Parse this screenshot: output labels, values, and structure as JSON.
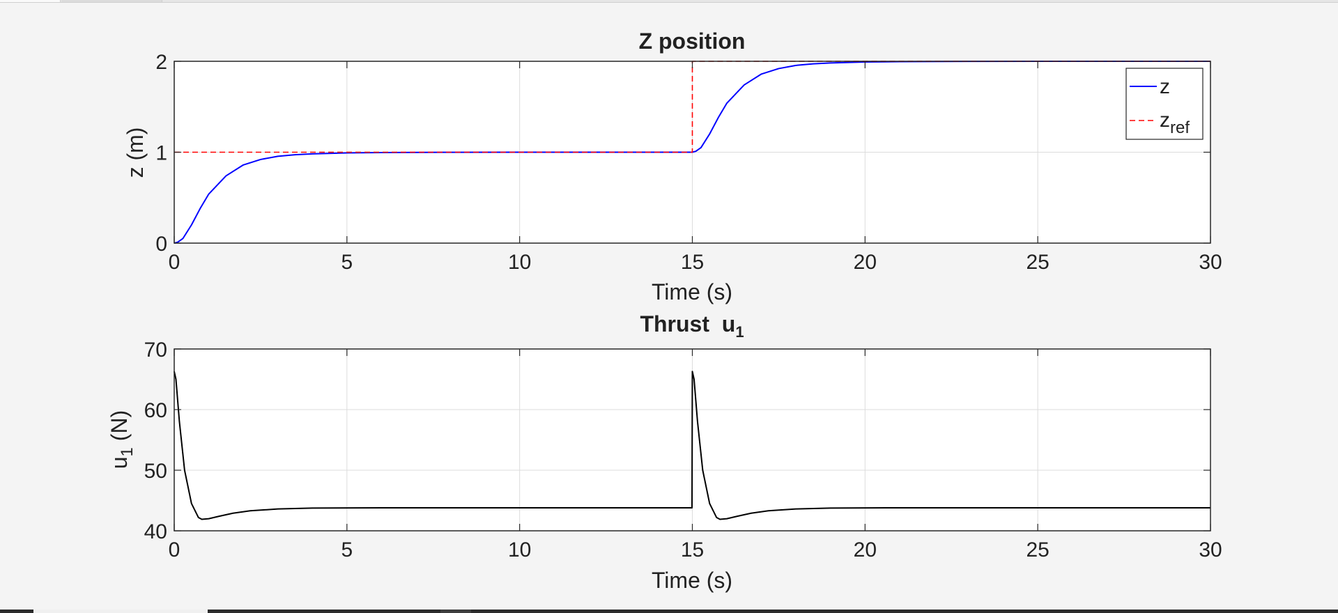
{
  "chart_data": [
    {
      "type": "line",
      "title": "Z position",
      "xlabel": "Time (s)",
      "ylabel": "z (m)",
      "xlim": [
        0,
        30
      ],
      "ylim": [
        0,
        2
      ],
      "xticks": [
        0,
        5,
        10,
        15,
        20,
        25,
        30
      ],
      "yticks": [
        0,
        1,
        2
      ],
      "grid": true,
      "legend": {
        "position": "top-right",
        "entries": [
          {
            "label": "z"
          },
          {
            "label": "z",
            "sub": "ref"
          }
        ]
      },
      "series": [
        {
          "name": "z",
          "color": "#0000ff",
          "style": "solid",
          "x": [
            0,
            0.1,
            0.25,
            0.5,
            0.75,
            1.0,
            1.5,
            2.0,
            2.5,
            3.0,
            3.5,
            4.0,
            5.0,
            6.0,
            8.0,
            10.0,
            15.0,
            15.1,
            15.25,
            15.5,
            15.75,
            16.0,
            16.5,
            17.0,
            17.5,
            18.0,
            18.5,
            19.0,
            20.0,
            21.0,
            23.0,
            25.0,
            30.0
          ],
          "y": [
            0,
            0.01,
            0.05,
            0.2,
            0.38,
            0.54,
            0.74,
            0.86,
            0.92,
            0.955,
            0.972,
            0.982,
            0.992,
            0.996,
            0.999,
            1.0,
            1.0,
            1.01,
            1.05,
            1.2,
            1.38,
            1.54,
            1.74,
            1.86,
            1.92,
            1.955,
            1.972,
            1.982,
            1.992,
            1.996,
            1.999,
            2.0,
            2.0
          ]
        },
        {
          "name": "z_ref",
          "color": "#ff0000",
          "style": "dashed",
          "x": [
            0,
            15,
            15,
            30
          ],
          "y": [
            1,
            1,
            2,
            2
          ]
        }
      ]
    },
    {
      "type": "line",
      "title": "Thrust  u",
      "title_sub": "1",
      "xlabel": "Time (s)",
      "ylabel": "u",
      "ylabel_sub": "1",
      "ylabel_unit": " (N)",
      "xlim": [
        0,
        30
      ],
      "ylim": [
        40,
        70
      ],
      "xticks": [
        0,
        5,
        10,
        15,
        20,
        25,
        30
      ],
      "yticks": [
        40,
        50,
        60,
        70
      ],
      "grid": true,
      "series": [
        {
          "name": "u1",
          "color": "#000000",
          "style": "solid",
          "x": [
            0,
            0.05,
            0.15,
            0.3,
            0.5,
            0.7,
            0.8,
            1.0,
            1.3,
            1.7,
            2.2,
            3.0,
            4.0,
            6.0,
            10.0,
            14.99,
            15.0,
            15.05,
            15.15,
            15.3,
            15.5,
            15.7,
            15.8,
            16.0,
            16.3,
            16.7,
            17.2,
            18.0,
            19.0,
            21.0,
            25.0,
            30.0
          ],
          "y": [
            66.3,
            65.0,
            58.0,
            50.0,
            44.5,
            42.2,
            41.9,
            42.0,
            42.4,
            42.9,
            43.3,
            43.6,
            43.75,
            43.8,
            43.8,
            43.8,
            66.3,
            65.0,
            58.0,
            50.0,
            44.5,
            42.2,
            41.9,
            42.0,
            42.4,
            42.9,
            43.3,
            43.6,
            43.75,
            43.8,
            43.8,
            43.8
          ]
        }
      ]
    }
  ]
}
